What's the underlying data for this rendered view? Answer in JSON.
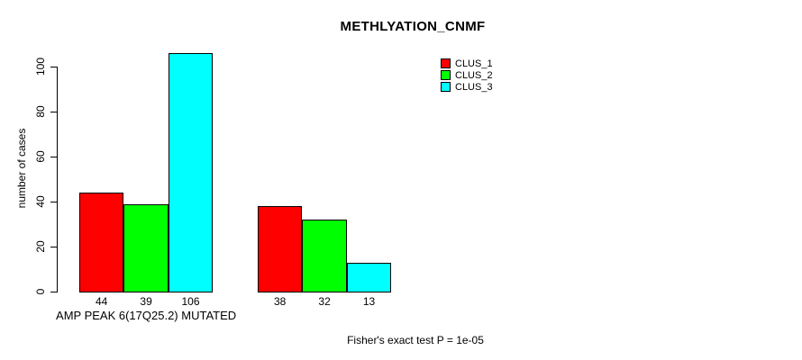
{
  "title": "METHLYATION_CNMF",
  "y_axis_title": "number of cases",
  "footer_note": "Fisher's exact test P = 1e-05",
  "chart_data": {
    "type": "bar",
    "title": "METHLYATION_CNMF",
    "xlabel": "",
    "ylabel": "number of cases",
    "ylim": [
      0,
      110
    ],
    "yticks": [
      0,
      20,
      40,
      60,
      80,
      100
    ],
    "grid": false,
    "legend_position": "top-right",
    "legend": [
      {
        "name": "CLUS_1",
        "color": "#ff0000"
      },
      {
        "name": "CLUS_2",
        "color": "#00ff00"
      },
      {
        "name": "CLUS_3",
        "color": "#00ffff"
      }
    ],
    "series_colors": [
      "#ff0000",
      "#00ff00",
      "#00ffff"
    ],
    "bar_border_color": "#000000",
    "groups": [
      {
        "label": "AMP PEAK 6(17Q25.2) MUTATED",
        "values": [
          44,
          39,
          106
        ],
        "bar_labels": [
          "44",
          "39",
          "106"
        ]
      },
      {
        "label": "",
        "values": [
          38,
          32,
          13
        ],
        "bar_labels": [
          "38",
          "32",
          "13"
        ]
      }
    ],
    "annotation": "Fisher's exact test P = 1e-05"
  }
}
